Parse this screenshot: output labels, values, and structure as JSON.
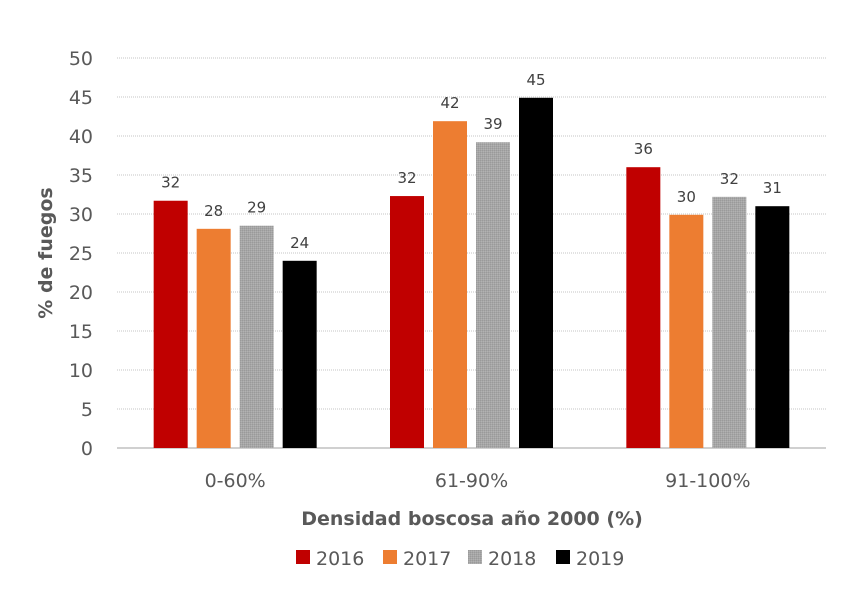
{
  "chart_data": {
    "type": "bar",
    "title": "",
    "xlabel": "Densidad boscosa año 2000 (%)",
    "ylabel": "% de fuegos",
    "ylim": [
      0,
      50
    ],
    "yticks": [
      0,
      5,
      10,
      15,
      20,
      25,
      30,
      35,
      40,
      45,
      50
    ],
    "grid": true,
    "legend_position": "bottom",
    "categories": [
      "0-60%",
      "61-90%",
      "91-100%"
    ],
    "series": [
      {
        "name": "2016",
        "color": "#c00000",
        "values": [
          31.7,
          32.3,
          36.0
        ],
        "labels": [
          "32",
          "32",
          "36"
        ]
      },
      {
        "name": "2017",
        "color": "#ed7d31",
        "values": [
          28.1,
          41.9,
          29.9
        ],
        "labels": [
          "28",
          "42",
          "30"
        ]
      },
      {
        "name": "2018",
        "color": "#a6a6a6",
        "values": [
          28.5,
          39.2,
          32.2
        ],
        "labels": [
          "29",
          "39",
          "32"
        ]
      },
      {
        "name": "2019",
        "color": "#000000",
        "values": [
          24.0,
          44.9,
          31.0
        ],
        "labels": [
          "24",
          "45",
          "31"
        ]
      }
    ]
  }
}
